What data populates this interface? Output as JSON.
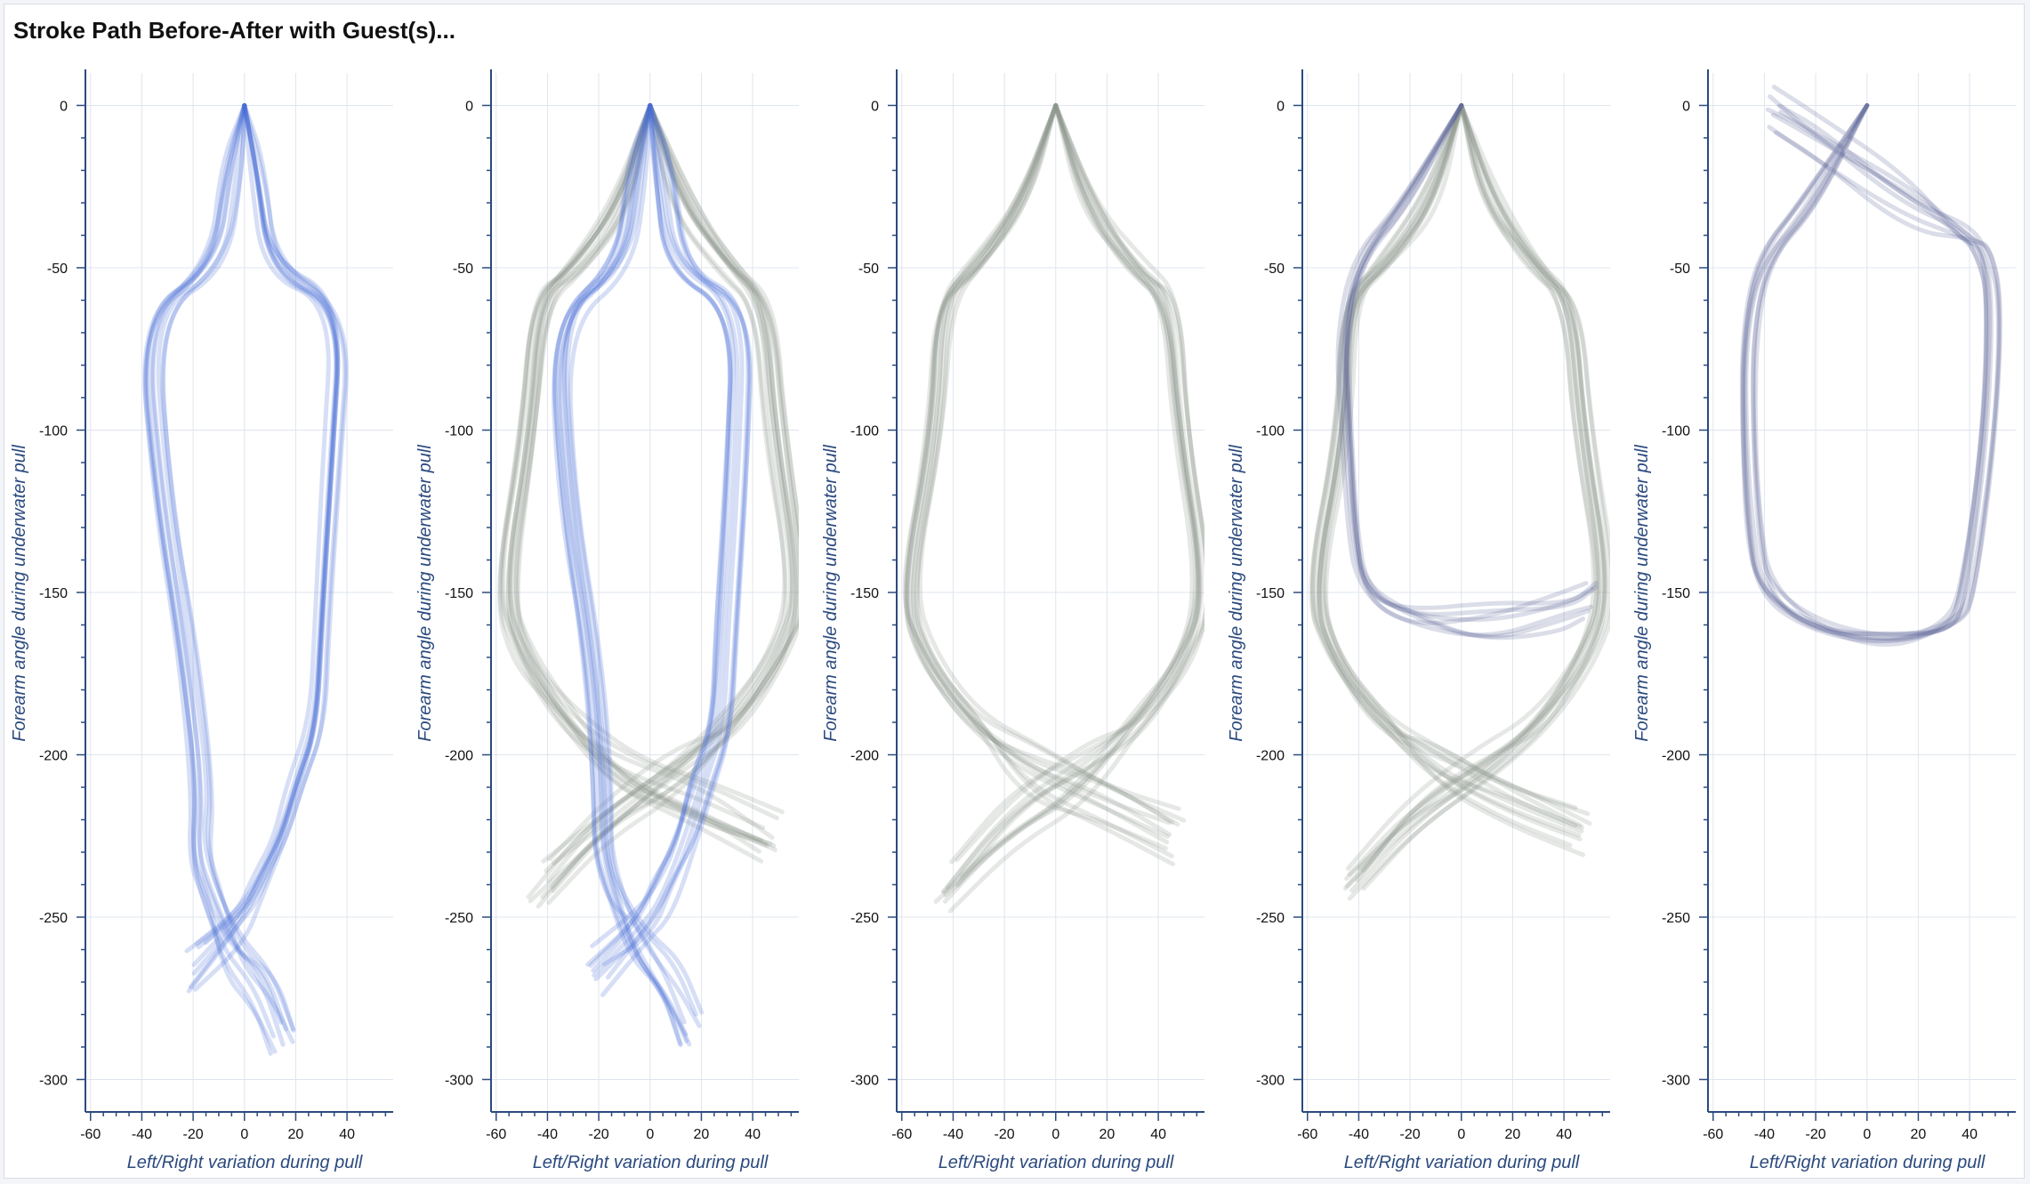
{
  "title": "Stroke Path Before-After with Guest(s)...",
  "colors": {
    "blue": "#4a6fd6",
    "gray": "#8f948f",
    "purple": "#5d6497",
    "grid": "#dfe5ee",
    "axis": "#2b4a7e"
  },
  "chart_data": [
    {
      "type": "line",
      "xlabel": "Left/Right variation during pull",
      "ylabel": "Forearm angle during underwater pull",
      "xlim": [
        -62,
        58
      ],
      "ylim": [
        -310,
        10
      ],
      "xticks": [
        "-60",
        "-40",
        "-20",
        "0",
        "20",
        "40"
      ],
      "yticks": [
        "0",
        "-50",
        "-100",
        "-150",
        "-200",
        "-250",
        "-300"
      ],
      "groups": [
        {
          "name": "",
          "color": "#4a6fd6",
          "count": 9,
          "x": [
            0,
            -5,
            -10,
            -38,
            -32,
            -22,
            -16,
            -18,
            -12,
            -4,
            8,
            16
          ],
          "y": [
            0,
            -20,
            -50,
            -65,
            -120,
            -170,
            -210,
            -230,
            -245,
            -258,
            -270,
            -285
          ]
        },
        {
          "name": "",
          "color": "#4a6fd6",
          "count": 9,
          "x": [
            0,
            5,
            10,
            38,
            34,
            30,
            28,
            20,
            14,
            6,
            -2,
            -20
          ],
          "y": [
            0,
            -20,
            -50,
            -62,
            -110,
            -160,
            -190,
            -210,
            -225,
            -240,
            -252,
            -265
          ]
        }
      ]
    },
    {
      "type": "line",
      "xlabel": "Left/Right variation during pull",
      "ylabel": "Forearm angle during underwater pull",
      "xlim": [
        -62,
        58
      ],
      "ylim": [
        -310,
        10
      ],
      "xticks": [
        "-60",
        "-40",
        "-20",
        "0",
        "20",
        "40"
      ],
      "yticks": [
        "0",
        "-50",
        "-100",
        "-150",
        "-200",
        "-250",
        "-300"
      ],
      "groups": [
        {
          "name": "",
          "color": "#8f948f",
          "count": 12,
          "x": [
            0,
            -12,
            -30,
            -44,
            -48,
            -58,
            -50,
            -32,
            -10,
            18,
            46
          ],
          "y": [
            0,
            -30,
            -50,
            -60,
            -100,
            -150,
            -170,
            -190,
            -205,
            -215,
            -225
          ]
        },
        {
          "name": "",
          "color": "#8f948f",
          "count": 12,
          "x": [
            0,
            12,
            30,
            44,
            48,
            58,
            50,
            32,
            10,
            -18,
            -42
          ],
          "y": [
            0,
            -30,
            -50,
            -60,
            -100,
            -150,
            -170,
            -190,
            -205,
            -220,
            -240
          ]
        },
        {
          "name": "",
          "color": "#4a6fd6",
          "count": 9,
          "x": [
            0,
            -5,
            -10,
            -36,
            -32,
            -22,
            -18,
            -18,
            -12,
            -4,
            8,
            16
          ],
          "y": [
            0,
            -20,
            -50,
            -65,
            -120,
            -170,
            -210,
            -230,
            -245,
            -258,
            -270,
            -285
          ]
        },
        {
          "name": "",
          "color": "#4a6fd6",
          "count": 9,
          "x": [
            0,
            5,
            10,
            36,
            34,
            30,
            28,
            20,
            14,
            6,
            -2,
            -20
          ],
          "y": [
            0,
            -20,
            -50,
            -62,
            -110,
            -160,
            -190,
            -210,
            -225,
            -240,
            -252,
            -265
          ]
        }
      ]
    },
    {
      "type": "line",
      "xlabel": "Left/Right variation during pull",
      "ylabel": "Forearm angle during underwater pull",
      "xlim": [
        -62,
        58
      ],
      "ylim": [
        -310,
        10
      ],
      "xticks": [
        "-60",
        "-40",
        "-20",
        "0",
        "20",
        "40"
      ],
      "yticks": [
        "0",
        "-50",
        "-100",
        "-150",
        "-200",
        "-250",
        "-300"
      ],
      "groups": [
        {
          "name": "",
          "color": "#8f948f",
          "count": 11,
          "x": [
            0,
            -12,
            -30,
            -44,
            -46,
            -58,
            -50,
            -32,
            -10,
            18,
            46
          ],
          "y": [
            0,
            -30,
            -50,
            -60,
            -100,
            -150,
            -170,
            -190,
            -205,
            -215,
            -225
          ]
        },
        {
          "name": "",
          "color": "#8f948f",
          "count": 11,
          "x": [
            0,
            12,
            30,
            44,
            48,
            58,
            50,
            32,
            10,
            -18,
            -42
          ],
          "y": [
            0,
            -30,
            -50,
            -60,
            -100,
            -150,
            -170,
            -190,
            -205,
            -220,
            -240
          ]
        }
      ]
    },
    {
      "type": "line",
      "xlabel": "Left/Right variation during pull",
      "ylabel": "Forearm angle during underwater pull",
      "xlim": [
        -62,
        58
      ],
      "ylim": [
        -310,
        10
      ],
      "xticks": [
        "-60",
        "-40",
        "-20",
        "0",
        "20",
        "40"
      ],
      "yticks": [
        "0",
        "-50",
        "-100",
        "-150",
        "-200",
        "-250",
        "-300"
      ],
      "groups": [
        {
          "name": "",
          "color": "#8f948f",
          "count": 11,
          "x": [
            0,
            -12,
            -30,
            -44,
            -46,
            -58,
            -50,
            -32,
            -10,
            18,
            46
          ],
          "y": [
            0,
            -30,
            -50,
            -60,
            -100,
            -150,
            -170,
            -190,
            -205,
            -215,
            -225
          ]
        },
        {
          "name": "",
          "color": "#8f948f",
          "count": 11,
          "x": [
            0,
            12,
            30,
            44,
            48,
            58,
            50,
            32,
            10,
            -18,
            -42
          ],
          "y": [
            0,
            -30,
            -50,
            -60,
            -100,
            -150,
            -170,
            -190,
            -205,
            -220,
            -240
          ]
        },
        {
          "name": "",
          "color": "#5d6497",
          "count": 7,
          "x": [
            0,
            -22,
            -40,
            -46,
            -44,
            -42,
            -38,
            -20,
            10,
            40,
            50
          ],
          "y": [
            0,
            -30,
            -48,
            -70,
            -100,
            -130,
            -150,
            -158,
            -162,
            -158,
            -155
          ]
        }
      ]
    },
    {
      "type": "line",
      "xlabel": "Left/Right variation during pull",
      "ylabel": "Forearm angle during underwater pull",
      "xlim": [
        -62,
        58
      ],
      "ylim": [
        -310,
        10
      ],
      "xticks": [
        "-60",
        "-40",
        "-20",
        "0",
        "20",
        "40"
      ],
      "yticks": [
        "0",
        "-50",
        "-100",
        "-150",
        "-200",
        "-250",
        "-300"
      ],
      "groups": [
        {
          "name": "",
          "color": "#5d6497",
          "count": 8,
          "x": [
            0,
            -22,
            -40,
            -46,
            -46,
            -44,
            -40,
            -20,
            10,
            34,
            40,
            48,
            50,
            46,
            40,
            16,
            -20,
            -36
          ],
          "y": [
            0,
            -30,
            -48,
            -70,
            -100,
            -130,
            -150,
            -160,
            -165,
            -160,
            -150,
            -100,
            -60,
            -45,
            -40,
            -30,
            -10,
            -2
          ]
        }
      ]
    }
  ]
}
